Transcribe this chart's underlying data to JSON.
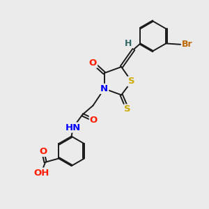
{
  "background_color": "#ebebeb",
  "atoms": {
    "N": {
      "color": "#0000ff",
      "fontsize": 9.5
    },
    "O": {
      "color": "#ff1a00",
      "fontsize": 9.5
    },
    "S": {
      "color": "#ccaa00",
      "fontsize": 9.5
    },
    "Br": {
      "color": "#bb6600",
      "fontsize": 9.0
    },
    "H": {
      "color": "#336666",
      "fontsize": 9.0
    },
    "C": {
      "color": "#111111",
      "fontsize": 9.0
    }
  },
  "bond_color": "#1a1a1a",
  "bond_width": 1.4,
  "figsize": [
    3.0,
    3.0
  ],
  "dpi": 100,
  "xlim": [
    0,
    10
  ],
  "ylim": [
    0,
    10
  ]
}
